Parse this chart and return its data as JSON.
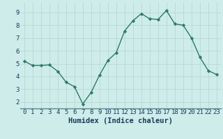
{
  "x": [
    0,
    1,
    2,
    3,
    4,
    5,
    6,
    7,
    8,
    9,
    10,
    11,
    12,
    13,
    14,
    15,
    16,
    17,
    18,
    19,
    20,
    21,
    22,
    23
  ],
  "y": [
    5.2,
    4.85,
    4.85,
    4.9,
    4.4,
    3.55,
    3.2,
    1.85,
    2.75,
    4.1,
    5.25,
    5.85,
    7.55,
    8.35,
    8.9,
    8.5,
    8.45,
    9.15,
    8.1,
    8.0,
    7.0,
    5.5,
    4.45,
    4.15
  ],
  "xlim": [
    -0.5,
    23.5
  ],
  "ylim": [
    1.5,
    9.75
  ],
  "yticks": [
    2,
    3,
    4,
    5,
    6,
    7,
    8,
    9
  ],
  "xticks": [
    0,
    1,
    2,
    3,
    4,
    5,
    6,
    7,
    8,
    9,
    10,
    11,
    12,
    13,
    14,
    15,
    16,
    17,
    18,
    19,
    20,
    21,
    22,
    23
  ],
  "xlabel": "Humidex (Indice chaleur)",
  "line_color": "#2a7a6a",
  "marker": "D",
  "marker_size": 2.2,
  "bg_color": "#ceecea",
  "grid_color": "#b8d8d4",
  "tick_color": "#1a3a5c",
  "xlabel_fontsize": 7.5,
  "tick_fontsize": 6.5,
  "line_width": 1.0,
  "bottom_bar_color": "#5a8a88"
}
